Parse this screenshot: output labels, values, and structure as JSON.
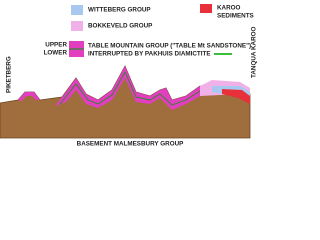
{
  "legend": {
    "witteberg": "WITTEBERG GROUP",
    "bokkeveld": "BOKKEVELD GROUP",
    "upper": "UPPER",
    "lower": "LOWER",
    "table_mountain": "TABLE MOUNTAIN GROUP (\"TABLE Mt SANDSTONE\")",
    "pakhuis": "INTERRUPTED BY PAKHUIS DIAMICTITE",
    "karoo": [
      "KAROO",
      "SEDIMENTS"
    ]
  },
  "labels": {
    "left": "PIKETBERG",
    "right": "TANQUA KAROO",
    "basement": "BASEMENT MALMESBURY GROUP"
  }
}
